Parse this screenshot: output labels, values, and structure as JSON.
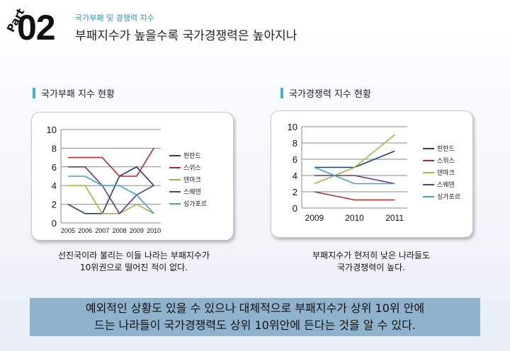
{
  "header": {
    "part_label": "Part",
    "part_number": "02",
    "subtitle": "국가부패 및 경쟁력 지수",
    "title": "부패지수가 높을수록 국가경쟁력은 높아지나"
  },
  "left_section": {
    "heading": "국가부패 지수 현황",
    "caption_line1": "선진국이라 불리는 이들 나라는 부패지수가",
    "caption_line2": "10위권으로 떨어진 적이 없다."
  },
  "right_section": {
    "heading": "국가경쟁력 지수 현황",
    "caption_line1": "부패지수가 현저히 낮은 나라들도",
    "caption_line2": "국가경쟁력이 높다."
  },
  "banner": {
    "line1": "예외적인 상황도 있을 수 있으나 대체적으로 부패지수가 상위 10위 안에",
    "line2": "드는 나라들이 국가경쟁력도 상위 10위안에 든다는 것을 알 수 있다."
  },
  "chart_data": [
    {
      "type": "line",
      "x": [
        "2005",
        "2006",
        "2007",
        "2008",
        "2009",
        "2010"
      ],
      "ylim": [
        0,
        10
      ],
      "yticks": [
        0,
        2,
        4,
        6,
        8,
        10
      ],
      "grid": true,
      "legend_position": "right",
      "series": [
        {
          "name": "핀란드",
          "color": "#1f3e7a",
          "values": [
            2,
            1,
            1,
            5,
            6,
            4
          ]
        },
        {
          "name": "스위스",
          "color": "#b22a2a",
          "values": [
            7,
            7,
            7,
            5,
            5,
            8
          ]
        },
        {
          "name": "덴마크",
          "color": "#9bbb3b",
          "values": [
            4,
            4,
            1,
            1,
            2,
            1
          ]
        },
        {
          "name": "스웨덴",
          "color": "#5b3a8a",
          "values": [
            6,
            6,
            4,
            1,
            3,
            4
          ]
        },
        {
          "name": "싱가포르",
          "color": "#3ba6c9",
          "values": [
            5,
            5,
            4,
            4,
            3,
            1
          ]
        }
      ]
    },
    {
      "type": "line",
      "x": [
        "2009",
        "2010",
        "2011"
      ],
      "ylim": [
        0,
        10
      ],
      "yticks": [
        0,
        2,
        4,
        6,
        8,
        10
      ],
      "grid": true,
      "legend_position": "right",
      "series": [
        {
          "name": "핀란드",
          "color": "#1f3e7a",
          "values": [
            5,
            5,
            7
          ]
        },
        {
          "name": "스위스",
          "color": "#b22a2a",
          "values": [
            2,
            1,
            1
          ]
        },
        {
          "name": "덴마크",
          "color": "#9bbb3b",
          "values": [
            3,
            5,
            9
          ]
        },
        {
          "name": "스웨덴",
          "color": "#5b3a8a",
          "values": [
            4,
            4,
            3
          ]
        },
        {
          "name": "싱가포르",
          "color": "#3ba6c9",
          "values": [
            5,
            3,
            3
          ]
        }
      ]
    }
  ]
}
